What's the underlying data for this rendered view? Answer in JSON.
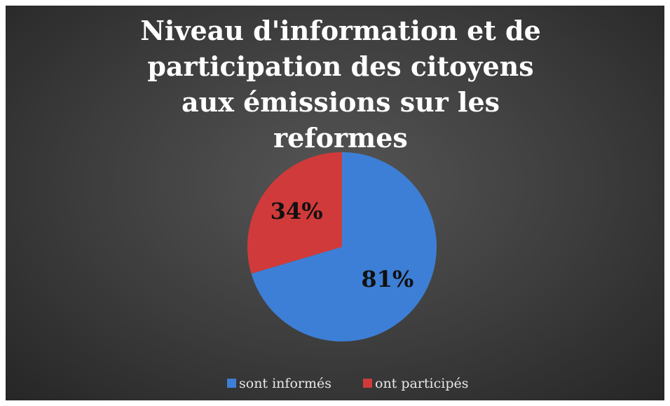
{
  "chart_data": {
    "type": "pie",
    "title": "Niveau d'information et de participation des citoyens aux émissions sur les reformes",
    "categories": [
      "sont informés",
      "ont participés"
    ],
    "values": [
      81,
      34
    ],
    "value_labels": [
      "81%",
      "34%"
    ],
    "colors": [
      "#3d7fd6",
      "#d13a3a"
    ],
    "legend": "bottom"
  }
}
